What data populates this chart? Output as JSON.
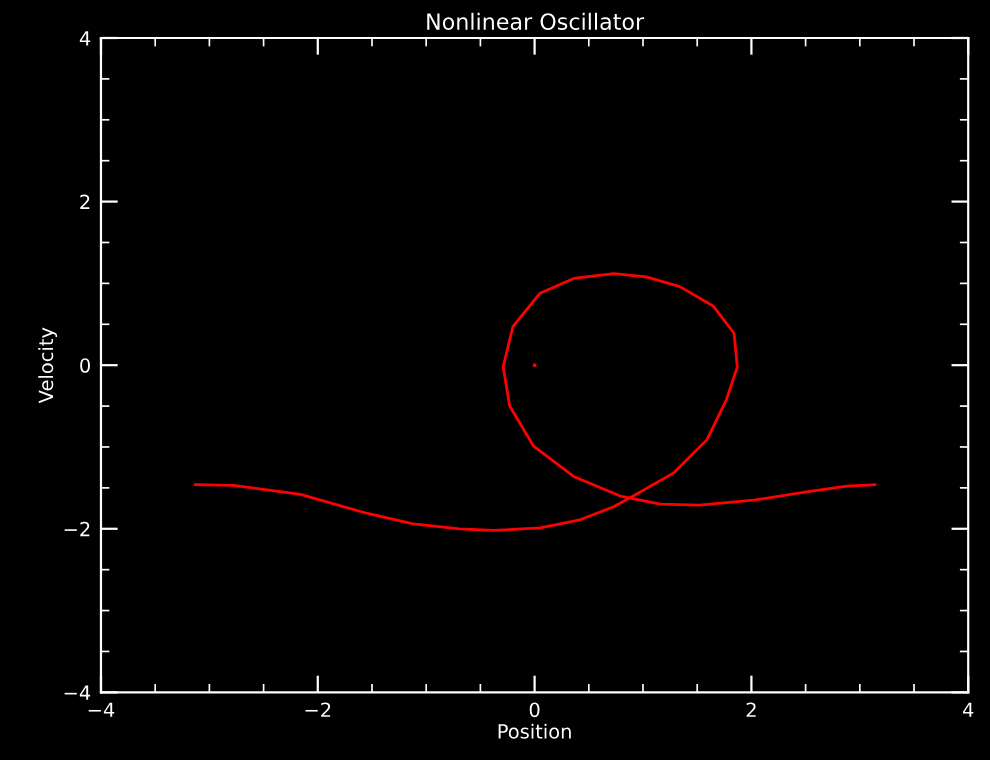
{
  "chart_data": {
    "type": "line",
    "title": "Nonlinear Oscillator",
    "xlabel": "Position",
    "ylabel": "Velocity",
    "xlim": [
      -4,
      4
    ],
    "ylim": [
      -4,
      4
    ],
    "xticks": [
      -4,
      -2,
      0,
      2,
      4
    ],
    "yticks": [
      -4,
      -2,
      0,
      2,
      4
    ],
    "grid": false,
    "legend": false,
    "series": [
      {
        "color": "#ff0000",
        "x": [
          -3.13,
          -2.78,
          -2.16,
          -1.55,
          -1.12,
          -0.69,
          -0.38,
          0.05,
          0.42,
          0.73,
          0.91,
          1.28,
          1.59,
          1.77,
          1.87,
          1.84,
          1.65,
          1.34,
          1.03,
          0.73,
          0.36,
          0.05,
          -0.2,
          -0.29,
          -0.23,
          -0.01,
          0.36,
          0.79,
          1.16,
          1.52,
          2.02,
          2.51,
          2.88,
          3.14
        ],
        "values": [
          -1.46,
          -1.47,
          -1.58,
          -1.81,
          -1.94,
          -2.0,
          -2.02,
          -1.99,
          -1.89,
          -1.73,
          -1.6,
          -1.32,
          -0.91,
          -0.42,
          -0.02,
          0.39,
          0.72,
          0.96,
          1.08,
          1.12,
          1.06,
          0.88,
          0.47,
          -0.02,
          -0.5,
          -0.99,
          -1.36,
          -1.6,
          -1.7,
          -1.71,
          -1.65,
          -1.55,
          -1.48,
          -1.46
        ]
      },
      {
        "type": "scatter",
        "color": "#ff0000",
        "x": [
          0
        ],
        "values": [
          0
        ]
      }
    ]
  }
}
